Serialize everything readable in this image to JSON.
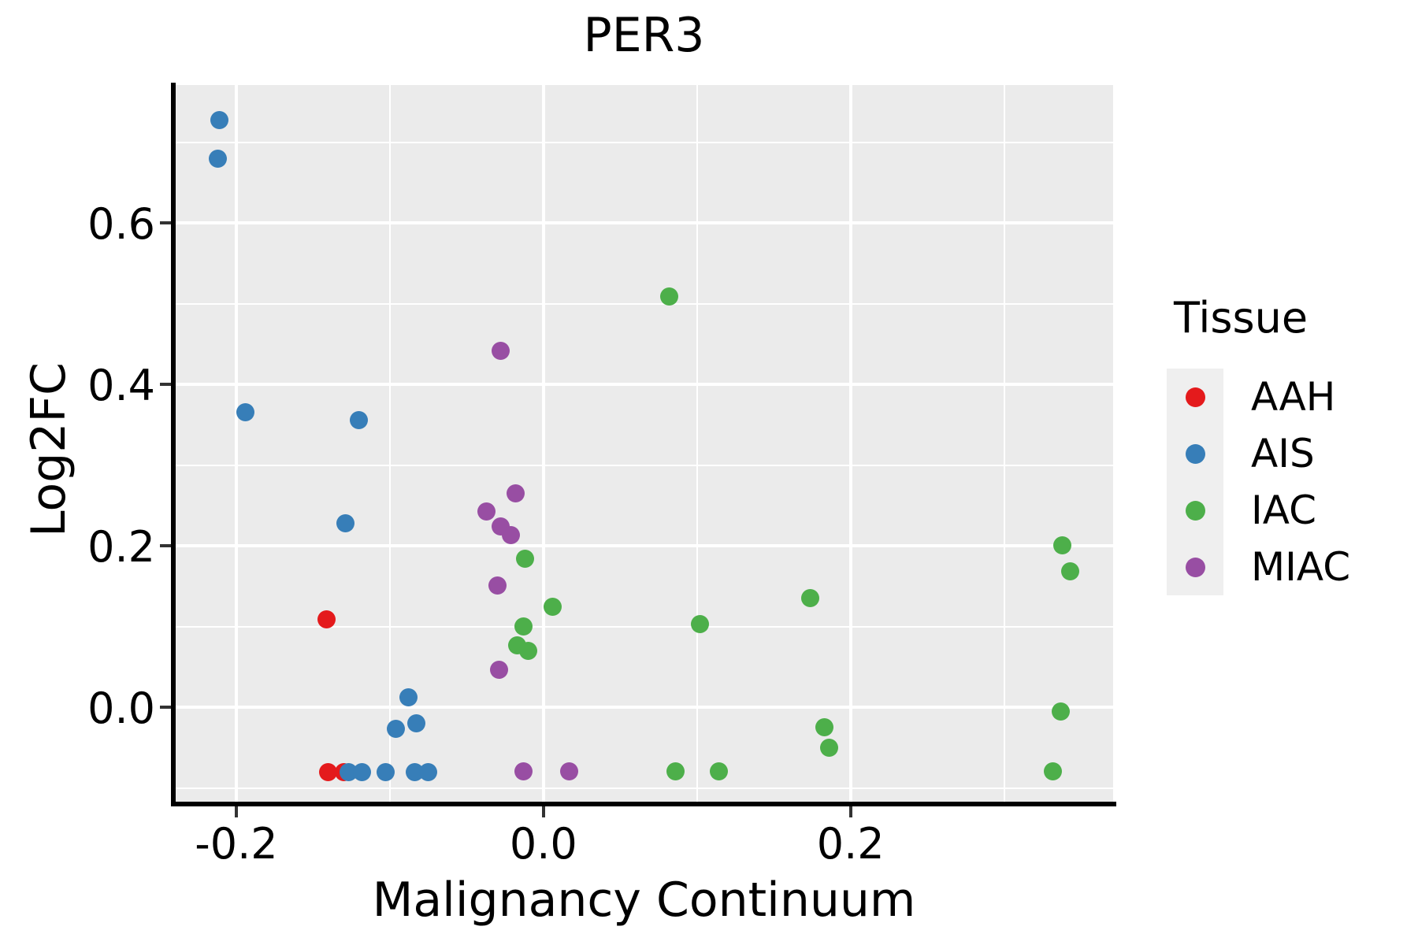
{
  "chart_data": {
    "type": "scatter",
    "title": "PER3",
    "xlabel": "Malignancy Continuum",
    "ylabel": "Log2FC",
    "legend_title": "Tissue",
    "legend_position": "right",
    "grid": "on",
    "panel_background": "#ebebeb",
    "gridline_color": "#ffffff",
    "x_axis": {
      "range": [
        -0.24,
        0.371
      ],
      "ticks": [
        -0.2,
        0.0,
        0.2
      ],
      "tick_labels": [
        "-0.2",
        "0.0",
        "0.2"
      ],
      "minor_ticks": [
        -0.1,
        0.1,
        0.3
      ]
    },
    "y_axis": {
      "range": [
        -0.117,
        0.771
      ],
      "ticks": [
        0.0,
        0.2,
        0.4,
        0.6
      ],
      "tick_labels": [
        "0.0",
        "0.2",
        "0.4",
        "0.6"
      ],
      "minor_ticks": [
        -0.1,
        0.1,
        0.3,
        0.5,
        0.7
      ]
    },
    "series": [
      {
        "name": "AAH",
        "color": "#E41A1C",
        "points": [
          [
            -0.141,
            0.109
          ],
          [
            -0.14,
            -0.08
          ],
          [
            -0.13,
            -0.08
          ]
        ]
      },
      {
        "name": "AIS",
        "color": "#377EB8",
        "points": [
          [
            -0.211,
            0.728
          ],
          [
            -0.212,
            0.68
          ],
          [
            -0.194,
            0.366
          ],
          [
            -0.12,
            0.356
          ],
          [
            -0.129,
            0.228
          ],
          [
            -0.088,
            0.012
          ],
          [
            -0.096,
            -0.027
          ],
          [
            -0.083,
            -0.02
          ],
          [
            -0.127,
            -0.08
          ],
          [
            -0.118,
            -0.08
          ],
          [
            -0.103,
            -0.08
          ],
          [
            -0.084,
            -0.08
          ],
          [
            -0.075,
            -0.08
          ]
        ]
      },
      {
        "name": "IAC",
        "color": "#4DAF4A",
        "points": [
          [
            0.082,
            0.509
          ],
          [
            -0.012,
            0.184
          ],
          [
            0.006,
            0.125
          ],
          [
            -0.013,
            0.1
          ],
          [
            -0.017,
            0.077
          ],
          [
            -0.01,
            0.07
          ],
          [
            0.102,
            0.103
          ],
          [
            0.174,
            0.135
          ],
          [
            0.338,
            0.201
          ],
          [
            0.343,
            0.168
          ],
          [
            0.337,
            -0.005
          ],
          [
            0.183,
            -0.025
          ],
          [
            0.186,
            -0.05
          ],
          [
            0.086,
            -0.079
          ],
          [
            0.114,
            -0.079
          ],
          [
            0.332,
            -0.079
          ]
        ]
      },
      {
        "name": "MIAC",
        "color": "#984EA3",
        "points": [
          [
            -0.028,
            0.442
          ],
          [
            -0.018,
            0.265
          ],
          [
            -0.037,
            0.243
          ],
          [
            -0.028,
            0.224
          ],
          [
            -0.021,
            0.213
          ],
          [
            -0.03,
            0.151
          ],
          [
            -0.029,
            0.046
          ],
          [
            -0.013,
            -0.079
          ],
          [
            0.017,
            -0.079
          ]
        ]
      }
    ]
  }
}
